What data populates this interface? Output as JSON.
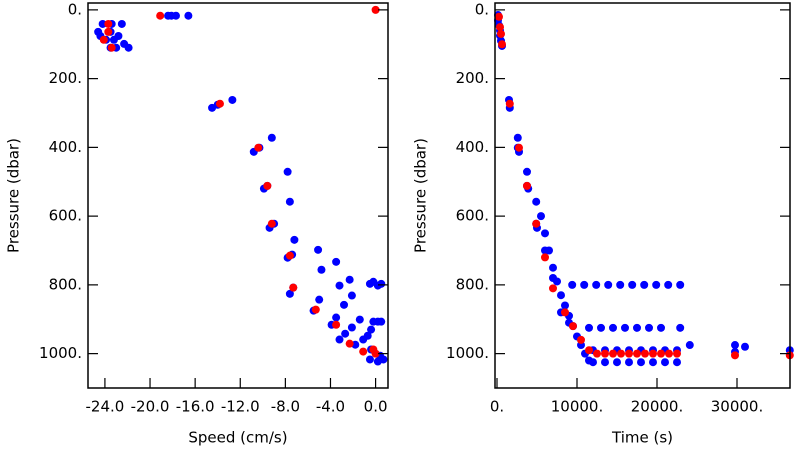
{
  "chart_data": [
    {
      "type": "scatter",
      "xlabel": "Speed (cm/s)",
      "ylabel": "Pressure (dbar)",
      "xlim": [
        -25.5,
        1.1
      ],
      "ylim": [
        -20,
        1100
      ],
      "y_inverted": true,
      "xticks": [
        {
          "value": -24,
          "label": "-24.0"
        },
        {
          "value": -20,
          "label": "-20.0"
        },
        {
          "value": -16,
          "label": "-16.0"
        },
        {
          "value": -12,
          "label": "-12.0"
        },
        {
          "value": -8,
          "label": "-8.0"
        },
        {
          "value": -4,
          "label": "-4.0"
        },
        {
          "value": 0,
          "label": "0.0"
        }
      ],
      "yticks": [
        {
          "value": 0,
          "label": "0."
        },
        {
          "value": 200,
          "label": "200."
        },
        {
          "value": 400,
          "label": "400."
        },
        {
          "value": 600,
          "label": "600."
        },
        {
          "value": 800,
          "label": "800."
        },
        {
          "value": 1000,
          "label": "1000."
        }
      ],
      "series": [
        {
          "color": "#0000ff",
          "x": [
            -24.2,
            -23.4,
            -22.5,
            -24.6,
            -23.5,
            -24.4,
            -22.8,
            -23.9,
            -23.2,
            -22.3,
            -23.5,
            -23.0,
            -21.9,
            -18.4,
            -18.1,
            -17.7,
            -16.6,
            -14.5,
            -14.0,
            -12.7,
            -10.8,
            -10.3,
            -9.2,
            -9.9,
            -9.6,
            -7.8,
            -9.4,
            -9.0,
            -7.6,
            -7.8,
            -7.4,
            -7.2,
            -5.1,
            -7.6,
            -7.3,
            -4.8,
            -3.5,
            -5.5,
            -5.0,
            -3.2,
            -2.3,
            -3.9,
            -3.5,
            -2.8,
            -2.1,
            -3.2,
            -2.7,
            -2.1,
            -1.4,
            -1.8,
            -1.1,
            -0.7,
            -0.4,
            -0.2,
            0.2,
            0.5,
            -0.4,
            0.4,
            0.7,
            -0.5,
            0.2,
            -0.5,
            -0.2,
            0.2,
            0.5
          ],
          "values": [
            41,
            41,
            41,
            64,
            64,
            76,
            76,
            87,
            87,
            99,
            110,
            110,
            110,
            17,
            17,
            17,
            17,
            285,
            276,
            262,
            413,
            401,
            372,
            520,
            512,
            471,
            634,
            622,
            558,
            721,
            712,
            669,
            698,
            826,
            808,
            756,
            733,
            875,
            843,
            802,
            785,
            916,
            895,
            858,
            831,
            959,
            942,
            924,
            901,
            974,
            959,
            948,
            930,
            907,
            907,
            907,
            988,
            1006,
            1017,
            1017,
            1023,
            797,
            791,
            802,
            797
          ]
        },
        {
          "color": "#ff0000",
          "x": [
            -23.7,
            -23.7,
            -24.1,
            -23.4,
            -19.1,
            -13.8,
            -10.4,
            -9.6,
            -9.2,
            -7.6,
            -7.3,
            -5.3,
            -3.5,
            -2.3,
            -1.1,
            0,
            -0.2,
            0
          ],
          "values": [
            41,
            64,
            87,
            110,
            17,
            273,
            401,
            512,
            622,
            715,
            808,
            872,
            916,
            971,
            994,
            1000,
            988,
            0
          ]
        }
      ]
    },
    {
      "type": "scatter",
      "xlabel": "Time (s)",
      "ylabel": "Pressure (dbar)",
      "xlim": [
        -250,
        36625
      ],
      "ylim": [
        -20,
        1100
      ],
      "y_inverted": true,
      "xticks": [
        {
          "value": 0,
          "label": "0."
        },
        {
          "value": 10000,
          "label": "10000."
        },
        {
          "value": 20000,
          "label": "20000."
        },
        {
          "value": 30000,
          "label": "30000."
        }
      ],
      "yticks": [
        {
          "value": 0,
          "label": "0."
        },
        {
          "value": 200,
          "label": "200."
        },
        {
          "value": 400,
          "label": "400."
        },
        {
          "value": 600,
          "label": "600."
        },
        {
          "value": 800,
          "label": "800."
        },
        {
          "value": 1000,
          "label": "1000."
        }
      ],
      "series": [
        {
          "color": "#0000ff",
          "x": [
            125,
            125,
            250,
            375,
            375,
            500,
            625,
            1500,
            1600,
            2600,
            2600,
            2750,
            3750,
            3750,
            3900,
            4900,
            4900,
            5000,
            5500,
            6000,
            6500,
            7000,
            7500,
            8000,
            8500,
            9000,
            9500,
            10000,
            10500,
            11000,
            11500,
            6000,
            7000,
            8000,
            9000,
            9400,
            10900,
            12400,
            13900,
            15400,
            16900,
            18400,
            19900,
            21400,
            22900,
            11500,
            13000,
            14500,
            16000,
            17500,
            19000,
            20500,
            22900,
            12000,
            13500,
            15000,
            16500,
            18000,
            19500,
            21000,
            22500,
            12000,
            13500,
            15000,
            16500,
            18000,
            19500,
            21000,
            22500,
            24100,
            29750,
            29750,
            31000,
            36600
          ],
          "values": [
            15,
            30,
            45,
            60,
            75,
            90,
            105,
            262,
            285,
            372,
            401,
            413,
            471,
            512,
            520,
            558,
            622,
            634,
            600,
            650,
            700,
            750,
            790,
            830,
            860,
            890,
            920,
            950,
            975,
            1000,
            1020,
            700,
            780,
            880,
            910,
            800,
            800,
            800,
            800,
            800,
            800,
            800,
            800,
            800,
            800,
            925,
            925,
            925,
            925,
            925,
            925,
            925,
            925,
            990,
            990,
            990,
            990,
            990,
            990,
            990,
            990,
            1025,
            1025,
            1025,
            1025,
            1025,
            1025,
            1025,
            1025,
            975,
            975,
            995,
            980,
            990
          ]
        },
        {
          "color": "#ff0000",
          "x": [
            250,
            375,
            500,
            625,
            1600,
            2750,
            3750,
            4900,
            6000,
            7000,
            8500,
            9500,
            10500,
            11500,
            12500,
            13500,
            14500,
            15500,
            16500,
            17500,
            18500,
            19500,
            20500,
            21500,
            22500,
            29750,
            36600
          ],
          "values": [
            20,
            50,
            70,
            100,
            273,
            401,
            512,
            622,
            720,
            810,
            880,
            920,
            960,
            990,
            1000,
            1000,
            1000,
            1000,
            1000,
            1000,
            1000,
            1000,
            1000,
            1000,
            1000,
            1005,
            1005
          ]
        }
      ]
    }
  ]
}
